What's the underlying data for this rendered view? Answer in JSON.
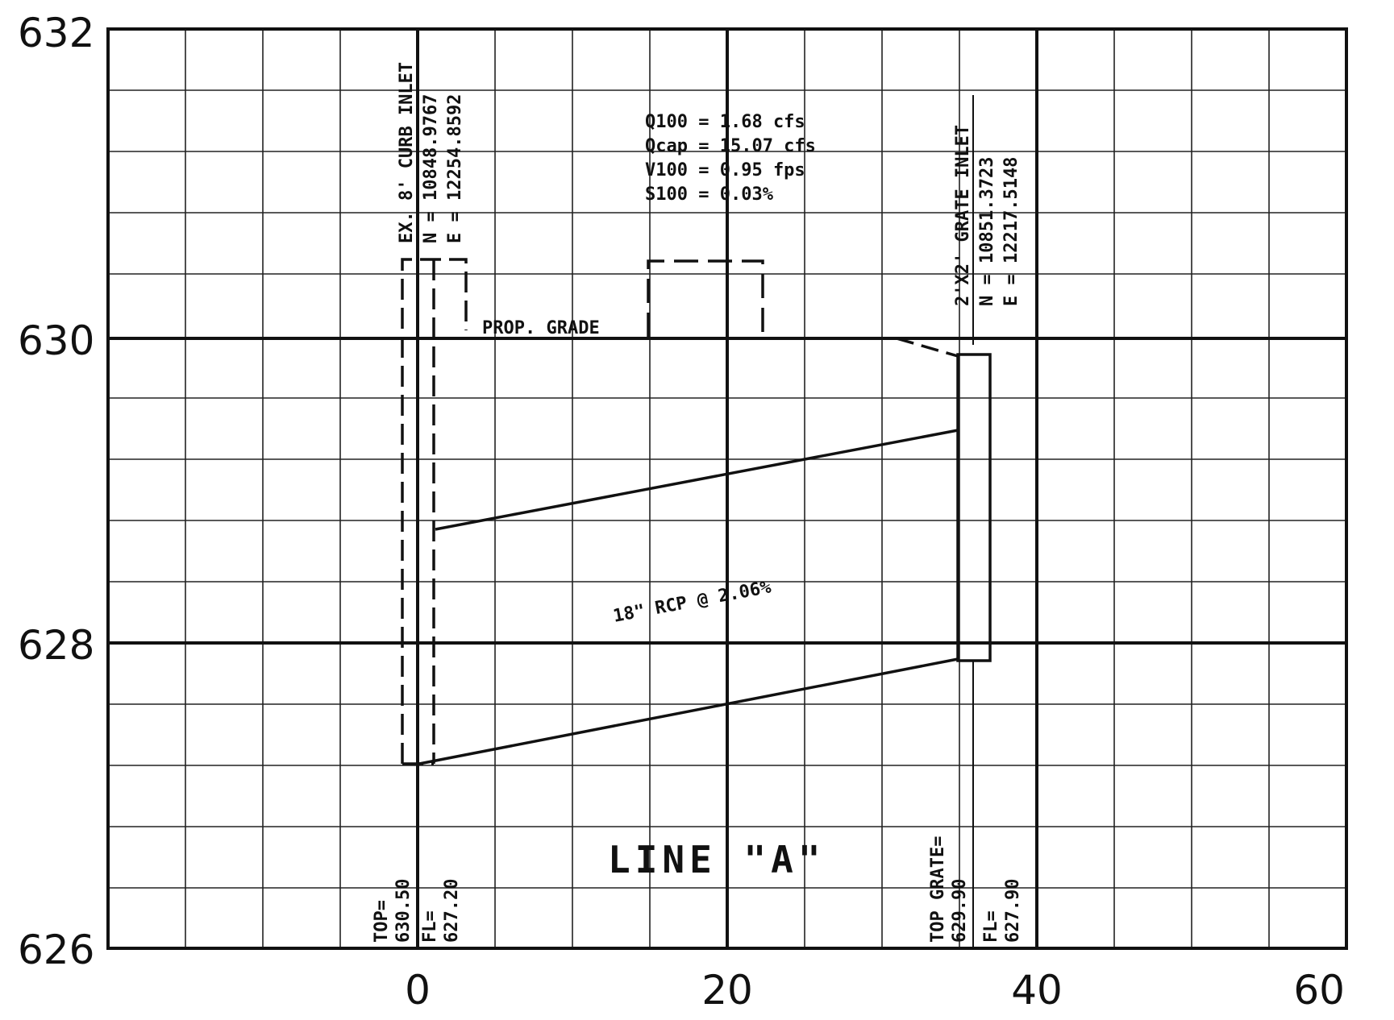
{
  "y_ticks": [
    "632",
    "630",
    "628",
    "626"
  ],
  "x_ticks": [
    "0",
    "20",
    "40",
    "60"
  ],
  "prop_grade": "PROP. GRADE",
  "flow": {
    "q100": "Q100 = 1.68 cfs",
    "qcap": "Qcap = 15.07 cfs",
    "v100": "V100 = 0.95 fps",
    "s100": "S100 = 0.03%"
  },
  "inlet_left": {
    "title": "EX. 8' CURB INLET",
    "north": "N = 10848.9767",
    "east": "E = 12254.8592",
    "top_label": "TOP=",
    "top_value": "630.50",
    "fl_label": "FL=",
    "fl_value": "627.20"
  },
  "inlet_right": {
    "title": "2'X2' GRATE INLET",
    "north": "N = 10851.3723",
    "east": "E = 12217.5148",
    "top_label": "TOP GRATE=",
    "top_value": "629.90",
    "fl_label": "FL=",
    "fl_value": "627.90"
  },
  "pipe_label": "18\" RCP @ 2.06%",
  "line_title": "LINE \"A\""
}
